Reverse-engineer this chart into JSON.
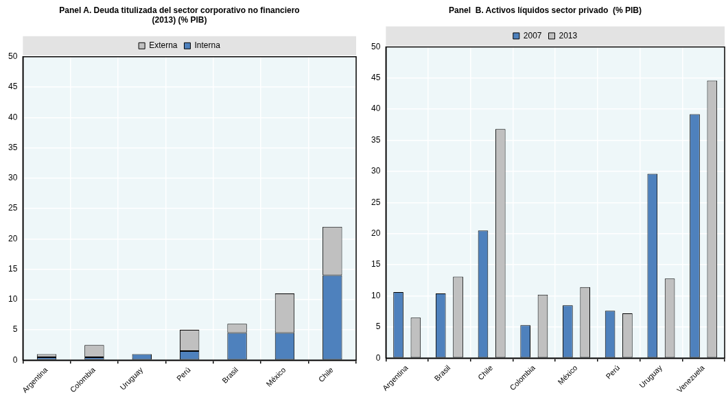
{
  "chart_data": [
    {
      "type": "bar",
      "title": "Panel A. Deuda titulizada del sector corporativo no financiero (2013) (% PIB)",
      "categories": [
        "Argentina",
        "Colombia",
        "Uruguay",
        "Perú",
        "Brasil",
        "México",
        "Chile"
      ],
      "stacked": true,
      "series": [
        {
          "name": "Interna",
          "color": "#4e81bd",
          "values": [
            0.5,
            0.5,
            1,
            1.5,
            4.5,
            4.5,
            14
          ]
        },
        {
          "name": "Externa",
          "color": "#c0c0c0",
          "values": [
            0.5,
            2,
            0,
            3.5,
            1.5,
            6.5,
            8
          ]
        }
      ],
      "ylim": [
        0,
        50
      ],
      "yticks": [
        0,
        5,
        10,
        15,
        20,
        25,
        30,
        35,
        40,
        45,
        50
      ],
      "grid": true,
      "legend": "top"
    },
    {
      "type": "bar",
      "title": "Panel  B. Activos líquidos sector privado  (% PIB)",
      "categories": [
        "Argentina",
        "Brasil",
        "Chile",
        "Colombia",
        "México",
        "Perú",
        "Uruguay",
        "Venezuela"
      ],
      "series": [
        {
          "name": "2007",
          "color": "#4e81bd",
          "values": [
            10.6,
            10.4,
            20.5,
            5.3,
            8.5,
            7.6,
            29.6,
            39.2
          ]
        },
        {
          "name": "2013",
          "color": "#c0c0c0",
          "values": [
            6.5,
            13.1,
            36.8,
            10.2,
            11.4,
            7.2,
            12.8,
            44.6
          ]
        }
      ],
      "ylim": [
        0,
        50
      ],
      "yticks": [
        0,
        5,
        10,
        15,
        20,
        25,
        30,
        35,
        40,
        45,
        50
      ],
      "grid": true,
      "legend": "top"
    }
  ]
}
